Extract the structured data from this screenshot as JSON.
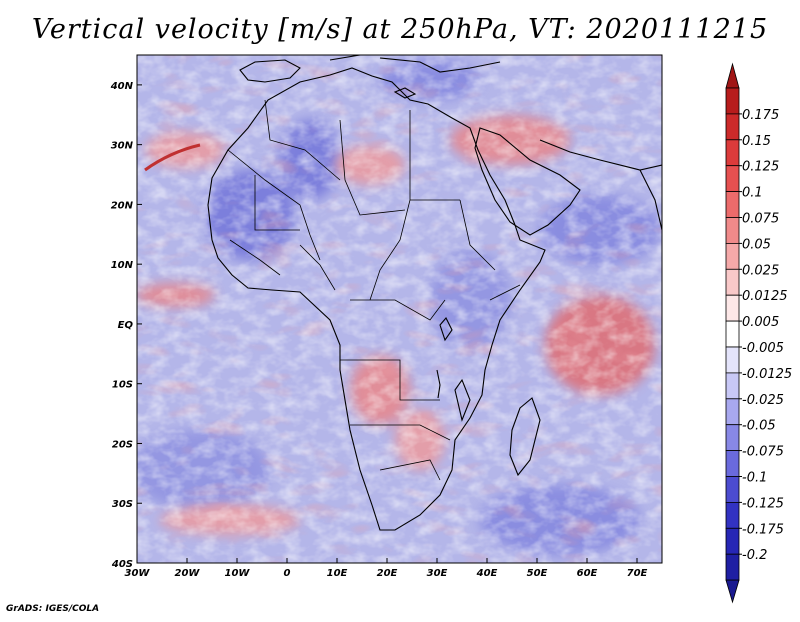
{
  "title": "Vertical velocity [m/s] at 250hPa, VT: 2020111215",
  "credit": "GrADS: IGES/COLA",
  "map": {
    "lat_labels": [
      "40N",
      "30N",
      "20N",
      "10N",
      "EQ",
      "10S",
      "20S",
      "30S",
      "40S"
    ],
    "lon_labels": [
      "30W",
      "20W",
      "10W",
      "0",
      "10E",
      "20E",
      "30E",
      "40E",
      "50E",
      "60E",
      "70E"
    ],
    "lat_range": [
      -40,
      45
    ],
    "lon_range": [
      -30,
      75
    ]
  },
  "colorbar": {
    "labels": [
      "0.175",
      "0.15",
      "0.125",
      "0.1",
      "0.075",
      "0.05",
      "0.025",
      "0.0125",
      "0.005",
      "-0.005",
      "-0.0125",
      "-0.025",
      "-0.05",
      "-0.075",
      "-0.1",
      "-0.125",
      "-0.175",
      "-0.2"
    ],
    "colors": [
      "#b71c1c",
      "#cc2a2a",
      "#dc3b3b",
      "#e65050",
      "#ec6b6b",
      "#f08a8a",
      "#f5a9a9",
      "#f9c9c9",
      "#fde8e8",
      "#ffffff",
      "#e4e4fb",
      "#c8c8f6",
      "#a8a8ef",
      "#8888e6",
      "#6a6add",
      "#4c4cd0",
      "#3232c2",
      "#2626b5",
      "#1f1fa3"
    ],
    "top_arrow_color": "#a01515",
    "bottom_arrow_color": "#1a1a90"
  },
  "colors": {
    "field_base": "#b4b6e9",
    "positive": "#e8868a",
    "negative": "#6a6dd8",
    "land_border": "#000000"
  }
}
